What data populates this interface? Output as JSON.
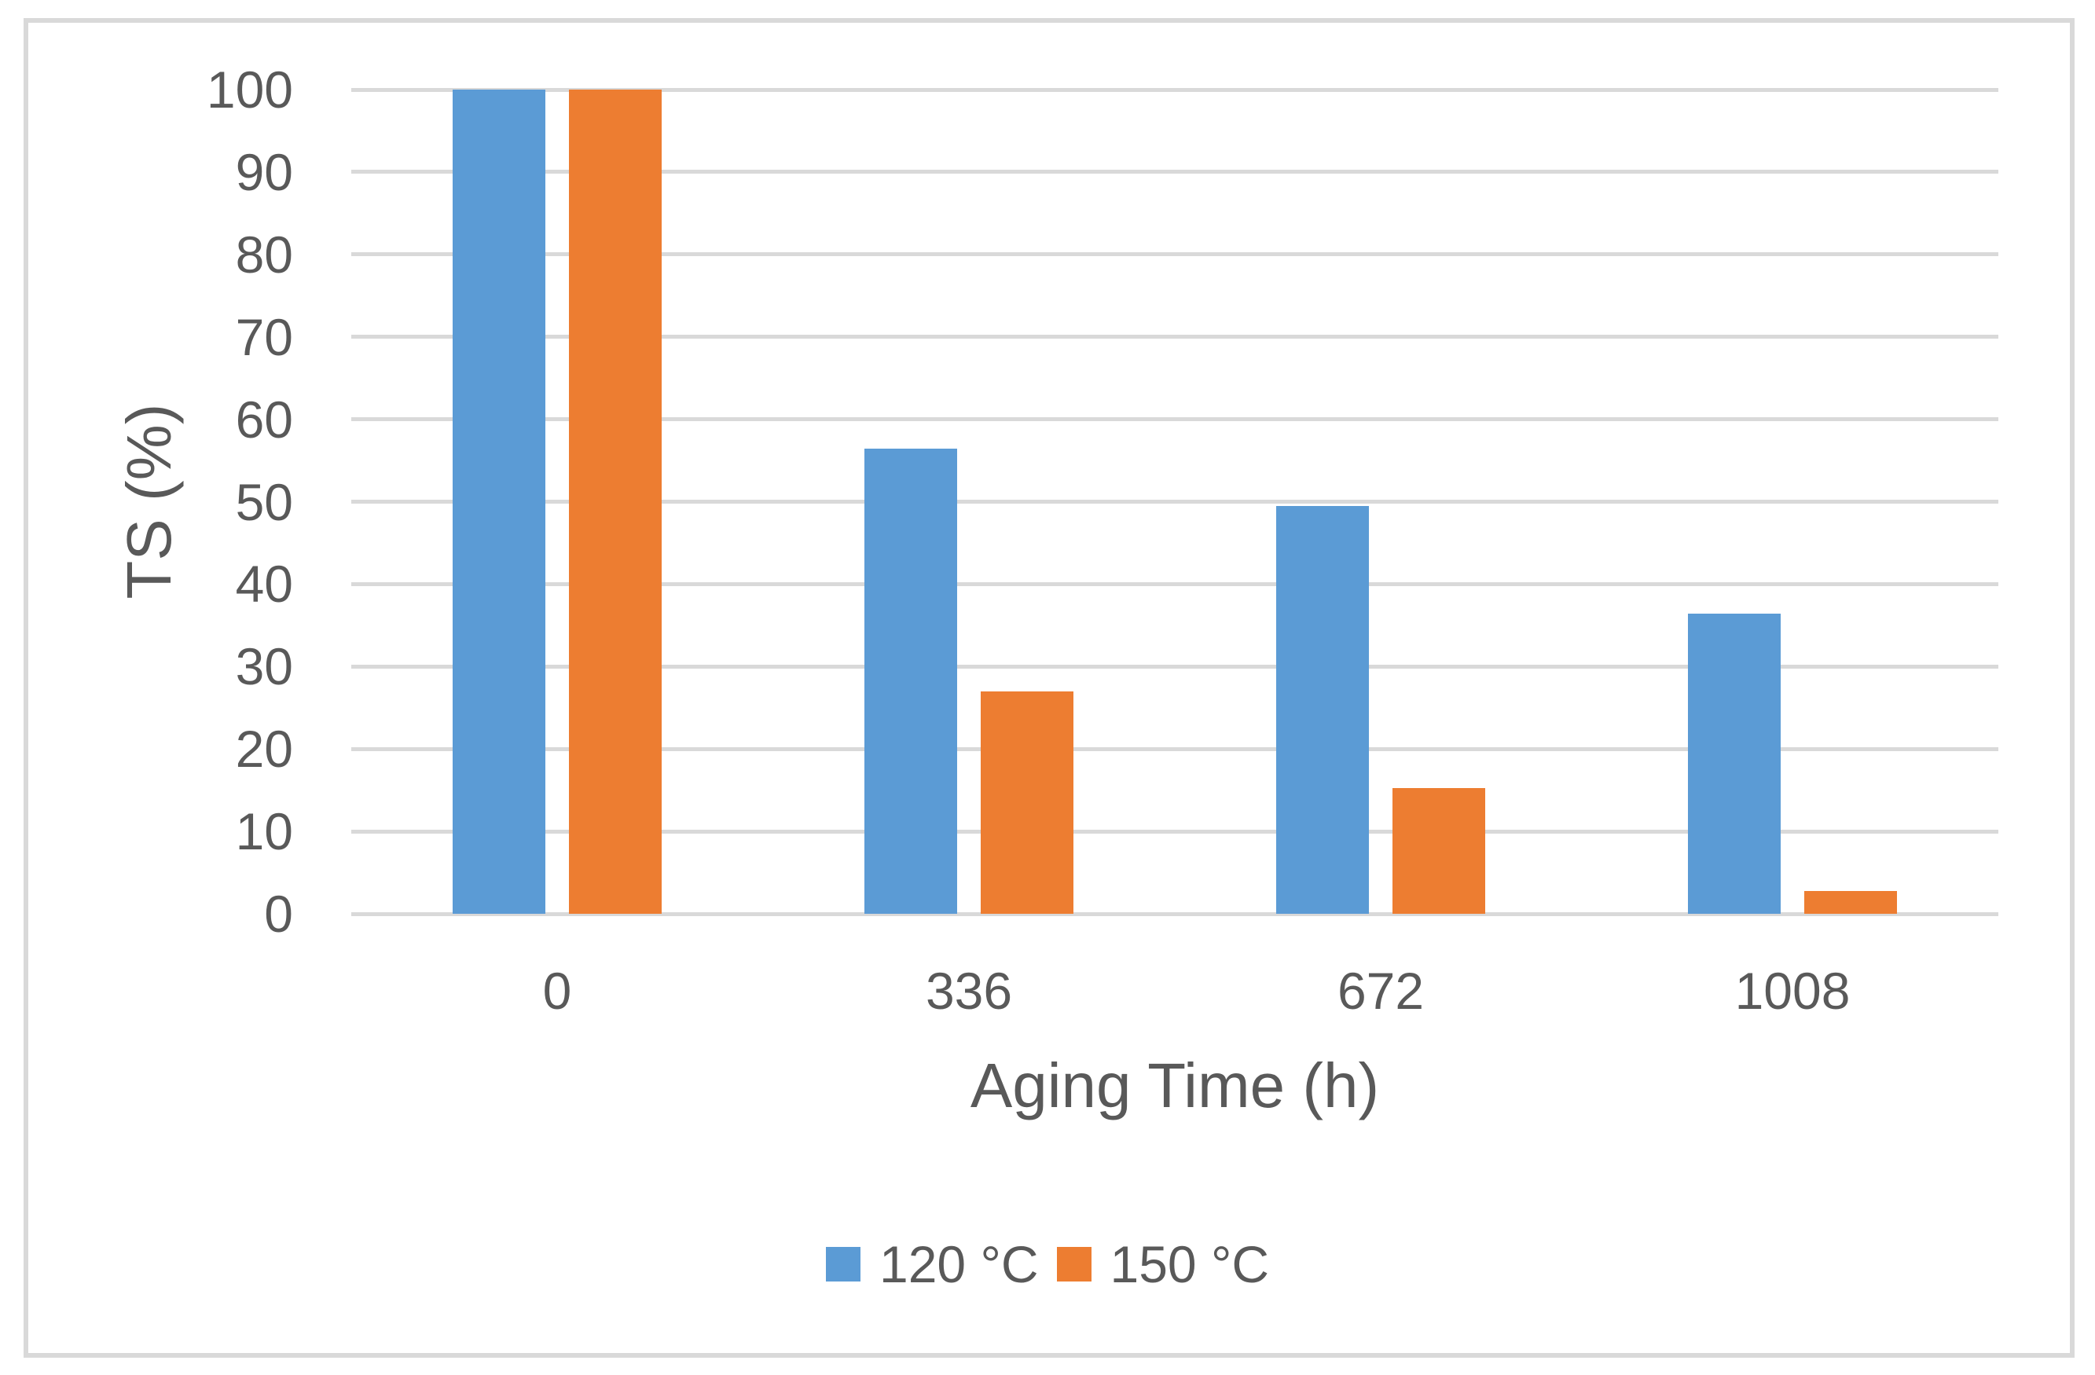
{
  "chart_data": {
    "type": "bar",
    "title": "",
    "categories": [
      "0",
      "336",
      "672",
      "1008"
    ],
    "series": [
      {
        "name": "120 °C",
        "color": "#5B9BD5",
        "values": [
          100,
          56.4,
          49.5,
          36.4
        ]
      },
      {
        "name": "150 °C",
        "color": "#ED7D31",
        "values": [
          100,
          27.0,
          15.3,
          2.8
        ]
      }
    ],
    "xlabel": "Aging Time (h)",
    "ylabel": "TS  (%)",
    "ylim": [
      0,
      100
    ],
    "ytick_step": 10,
    "yticks": [
      0,
      10,
      20,
      30,
      40,
      50,
      60,
      70,
      80,
      90,
      100
    ],
    "grid": "horizontal",
    "legend_position": "bottom",
    "colors": {
      "series_120c": "#5B9BD5",
      "series_150c": "#ED7D31",
      "gridline": "#D9D9D9",
      "frame_border": "#D9D9D9",
      "text": "#595959",
      "background": "#FFFFFF"
    }
  }
}
